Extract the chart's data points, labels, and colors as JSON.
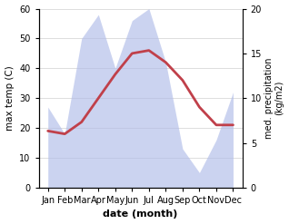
{
  "months": [
    "Jan",
    "Feb",
    "Mar",
    "Apr",
    "May",
    "Jun",
    "Jul",
    "Aug",
    "Sep",
    "Oct",
    "Nov",
    "Dec"
  ],
  "temperature": [
    19,
    18,
    22,
    30,
    38,
    45,
    46,
    42,
    36,
    27,
    21,
    21
  ],
  "precip_left": [
    27,
    18,
    50,
    58,
    40,
    56,
    60,
    42,
    13,
    5,
    16,
    32
  ],
  "temp_color": "#c0404a",
  "precip_color": "#b0bce8",
  "precip_fill_alpha": 0.65,
  "ylim_left": [
    0,
    60
  ],
  "ylim_right": [
    0,
    20
  ],
  "ylabel_left": "max temp (C)",
  "ylabel_right": "med. precipitation\n(kg/m2)",
  "xlabel": "date (month)",
  "left_yticks": [
    0,
    10,
    20,
    30,
    40,
    50,
    60
  ],
  "right_yticks": [
    0,
    5,
    10,
    15,
    20
  ],
  "bg_color": "#ffffff",
  "grid_color": "#d0d0d0",
  "line_width": 2.0,
  "scale_factor": 3.0
}
